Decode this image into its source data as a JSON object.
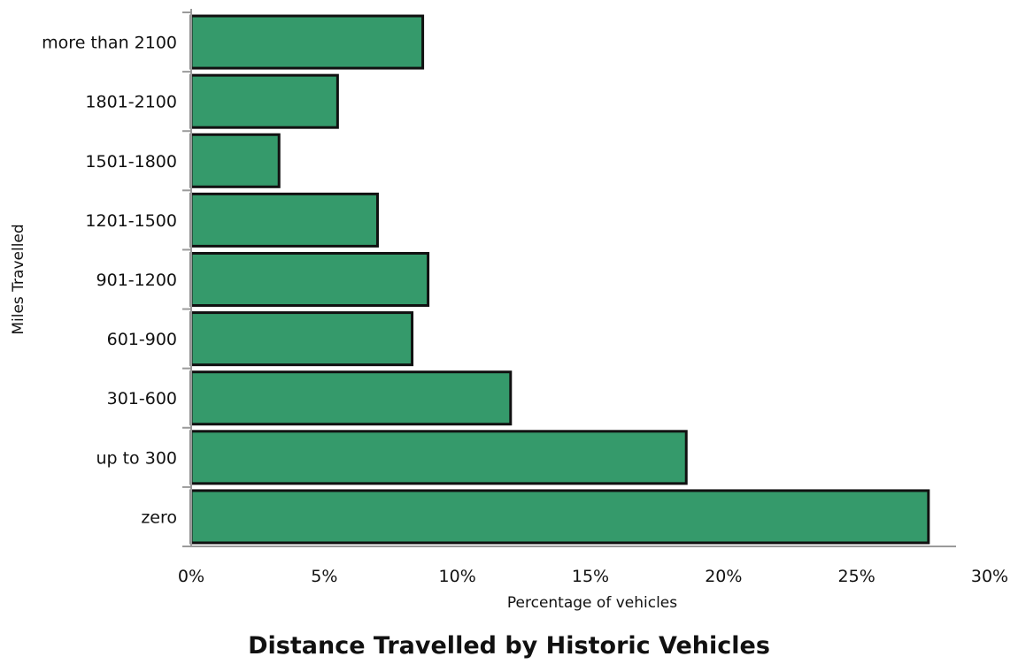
{
  "chart_data": {
    "type": "bar",
    "orientation": "horizontal",
    "title": "Distance Travelled by Historic Vehicles",
    "xlabel": "Percentage of vehicles",
    "ylabel": "Miles Travelled",
    "categories": [
      "more than 2100",
      "1801-2100",
      "1501-1800",
      "1201-1500",
      "901-1200",
      "601-900",
      "301-600",
      "up to 300",
      "zero"
    ],
    "values": [
      8.7,
      5.5,
      3.3,
      7.0,
      8.9,
      8.3,
      12.0,
      18.6,
      27.7
    ],
    "xlim": [
      0,
      30
    ],
    "x_ticks": [
      "0%",
      "5%",
      "10%",
      "15%",
      "20%",
      "25%",
      "30%"
    ],
    "grid": false,
    "bar_color": "#359a6b",
    "bar_edge_color": "#111111"
  }
}
